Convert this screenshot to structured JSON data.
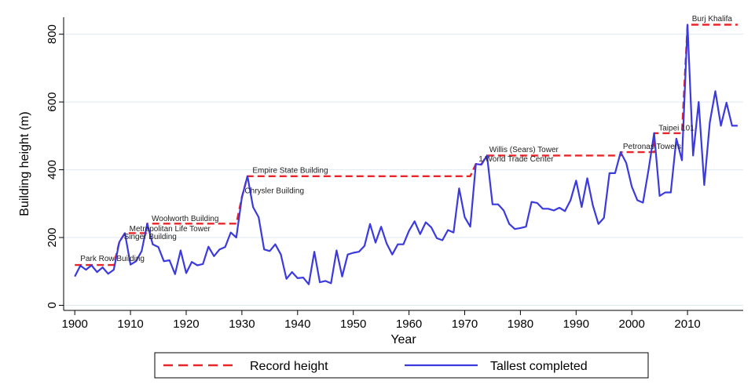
{
  "chart_data": {
    "type": "line",
    "xlabel": "Year",
    "ylabel": "Building height (m)",
    "xlim": [
      1898,
      2020
    ],
    "ylim": [
      -15,
      850
    ],
    "x_ticks": [
      1900,
      1910,
      1920,
      1930,
      1940,
      1950,
      1960,
      1970,
      1980,
      1990,
      2000,
      2010
    ],
    "y_ticks": [
      0,
      200,
      400,
      600,
      800
    ],
    "grid": "horizontal",
    "legend_position": "bottom",
    "series": [
      {
        "name": "Record height",
        "style": "dashed",
        "color": "#e8262a",
        "points": [
          [
            1900,
            119
          ],
          [
            1907,
            119
          ],
          [
            1908,
            187
          ],
          [
            1909,
            213
          ],
          [
            1909,
            213
          ],
          [
            1913,
            213
          ],
          [
            1913,
            241
          ],
          [
            1929,
            241
          ],
          [
            1930,
            319
          ],
          [
            1931,
            381
          ],
          [
            1971,
            381
          ],
          [
            1972,
            417
          ],
          [
            1973,
            417
          ],
          [
            1974,
            442
          ],
          [
            1998,
            442
          ],
          [
            1998,
            452
          ],
          [
            2004,
            452
          ],
          [
            2004,
            508
          ],
          [
            2009,
            508
          ],
          [
            2010,
            828
          ],
          [
            2019,
            828
          ]
        ]
      },
      {
        "name": "Tallest completed",
        "style": "solid",
        "color": "#3a3adf",
        "points": [
          [
            1900,
            85
          ],
          [
            1901,
            117
          ],
          [
            1902,
            105
          ],
          [
            1903,
            118
          ],
          [
            1904,
            98
          ],
          [
            1905,
            112
          ],
          [
            1906,
            93
          ],
          [
            1907,
            105
          ],
          [
            1908,
            187
          ],
          [
            1909,
            213
          ],
          [
            1910,
            120
          ],
          [
            1911,
            130
          ],
          [
            1912,
            160
          ],
          [
            1913,
            241
          ],
          [
            1914,
            180
          ],
          [
            1915,
            172
          ],
          [
            1916,
            130
          ],
          [
            1917,
            133
          ],
          [
            1918,
            92
          ],
          [
            1919,
            162
          ],
          [
            1920,
            95
          ],
          [
            1921,
            128
          ],
          [
            1922,
            118
          ],
          [
            1923,
            122
          ],
          [
            1924,
            173
          ],
          [
            1925,
            145
          ],
          [
            1926,
            165
          ],
          [
            1927,
            172
          ],
          [
            1928,
            215
          ],
          [
            1929,
            200
          ],
          [
            1930,
            319
          ],
          [
            1931,
            381
          ],
          [
            1932,
            290
          ],
          [
            1933,
            260
          ],
          [
            1934,
            165
          ],
          [
            1935,
            160
          ],
          [
            1936,
            180
          ],
          [
            1937,
            150
          ],
          [
            1938,
            78
          ],
          [
            1939,
            98
          ],
          [
            1940,
            80
          ],
          [
            1941,
            82
          ],
          [
            1942,
            62
          ],
          [
            1943,
            158
          ],
          [
            1944,
            68
          ],
          [
            1945,
            72
          ],
          [
            1946,
            65
          ],
          [
            1947,
            162
          ],
          [
            1948,
            85
          ],
          [
            1949,
            150
          ],
          [
            1950,
            155
          ],
          [
            1951,
            158
          ],
          [
            1952,
            175
          ],
          [
            1953,
            240
          ],
          [
            1954,
            185
          ],
          [
            1955,
            232
          ],
          [
            1956,
            182
          ],
          [
            1957,
            150
          ],
          [
            1958,
            180
          ],
          [
            1959,
            180
          ],
          [
            1960,
            220
          ],
          [
            1961,
            248
          ],
          [
            1962,
            210
          ],
          [
            1963,
            245
          ],
          [
            1964,
            230
          ],
          [
            1965,
            198
          ],
          [
            1966,
            192
          ],
          [
            1967,
            222
          ],
          [
            1968,
            215
          ],
          [
            1969,
            345
          ],
          [
            1970,
            260
          ],
          [
            1971,
            232
          ],
          [
            1972,
            417
          ],
          [
            1973,
            415
          ],
          [
            1974,
            442
          ],
          [
            1975,
            298
          ],
          [
            1976,
            298
          ],
          [
            1977,
            280
          ],
          [
            1978,
            240
          ],
          [
            1979,
            225
          ],
          [
            1980,
            228
          ],
          [
            1981,
            232
          ],
          [
            1982,
            305
          ],
          [
            1983,
            302
          ],
          [
            1984,
            285
          ],
          [
            1985,
            285
          ],
          [
            1986,
            280
          ],
          [
            1987,
            288
          ],
          [
            1988,
            278
          ],
          [
            1989,
            310
          ],
          [
            1990,
            368
          ],
          [
            1991,
            290
          ],
          [
            1992,
            375
          ],
          [
            1993,
            295
          ],
          [
            1994,
            240
          ],
          [
            1995,
            258
          ],
          [
            1996,
            390
          ],
          [
            1997,
            390
          ],
          [
            1998,
            452
          ],
          [
            1999,
            420
          ],
          [
            2000,
            350
          ],
          [
            2001,
            310
          ],
          [
            2002,
            303
          ],
          [
            2003,
            400
          ],
          [
            2004,
            508
          ],
          [
            2005,
            323
          ],
          [
            2006,
            333
          ],
          [
            2007,
            333
          ],
          [
            2008,
            492
          ],
          [
            2009,
            428
          ],
          [
            2010,
            828
          ],
          [
            2011,
            442
          ],
          [
            2012,
            600
          ],
          [
            2013,
            355
          ],
          [
            2014,
            540
          ],
          [
            2015,
            632
          ],
          [
            2016,
            530
          ],
          [
            2017,
            598
          ],
          [
            2018,
            530
          ],
          [
            2019,
            530
          ]
        ]
      }
    ],
    "annotations": [
      {
        "text": "Park Row Building",
        "x": 1901,
        "y": 131
      },
      {
        "text": "Singer Building",
        "x": 1908.8,
        "y": 195
      },
      {
        "text": "Metropolitan Life Tower",
        "x": 1909.8,
        "y": 219
      },
      {
        "text": "Woolworth Building",
        "x": 1913.8,
        "y": 249
      },
      {
        "text": "Empire State Building",
        "x": 1931.9,
        "y": 391
      },
      {
        "text": "Chrysler Building",
        "x": 1930.5,
        "y": 331
      },
      {
        "text": "Willis (Sears) Tower",
        "x": 1974.4,
        "y": 452
      },
      {
        "text": "1 World Trade Center",
        "x": 1972.5,
        "y": 425
      },
      {
        "text": "Petronas Towers",
        "x": 1998.4,
        "y": 461
      },
      {
        "text": "Taipei 101",
        "x": 2004.8,
        "y": 516
      },
      {
        "text": "Burj Khalifa",
        "x": 2010.8,
        "y": 838
      }
    ],
    "legend": {
      "record_label": "Record height",
      "tallest_label": "Tallest completed"
    }
  }
}
